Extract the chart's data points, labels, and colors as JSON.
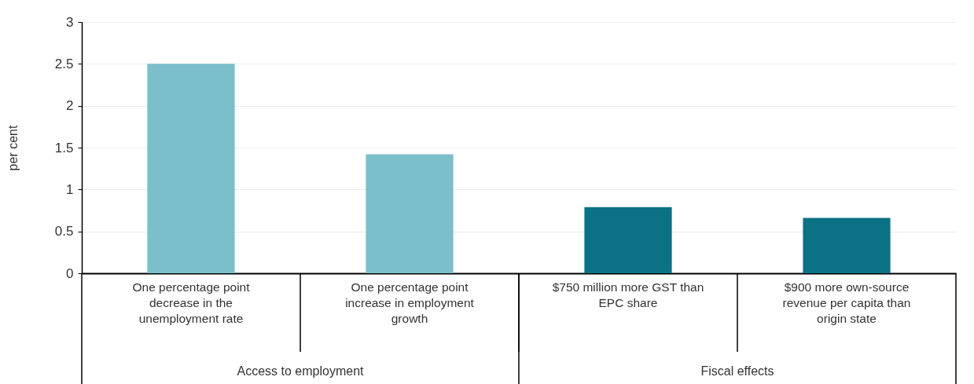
{
  "chart_data": {
    "type": "bar",
    "ylabel": "per cent",
    "categories": [
      "One percentage point decrease in the unemployment rate",
      "One percentage point increase in employment growth",
      "$750 million more GST than EPC share",
      "$900 more own-source revenue per capita than origin state"
    ],
    "values": [
      2.5,
      1.42,
      0.79,
      0.66
    ],
    "colors": [
      "#7abfca",
      "#7abfca",
      "#0b7285",
      "#0b7285"
    ],
    "ylim": [
      0,
      3
    ],
    "yticks": [
      0,
      0.5,
      1,
      1.5,
      2,
      2.5,
      3
    ],
    "grid": "y",
    "annotations": [
      "Access to employment",
      "Fiscal effects"
    ]
  }
}
